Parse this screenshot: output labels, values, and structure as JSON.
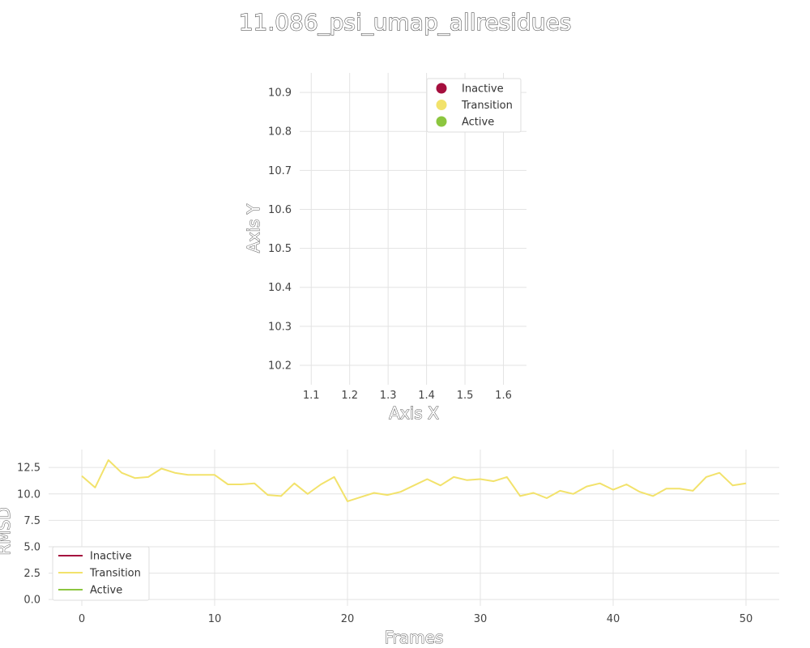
{
  "title": "11.086_psi_umap_allresidues",
  "colors": {
    "inactive": "#a50f3e",
    "transition": "#f2e26b",
    "active": "#8cc63f"
  },
  "chart_data": [
    {
      "type": "scatter",
      "title": "",
      "xlabel": "Axis X",
      "ylabel": "Axis Y",
      "xlim": [
        1.07,
        1.66
      ],
      "ylim": [
        10.15,
        10.95
      ],
      "x_ticks": [
        "1.1",
        "1.2",
        "1.3",
        "1.4",
        "1.5",
        "1.6"
      ],
      "x_tick_values": [
        1.1,
        1.2,
        1.3,
        1.4,
        1.5,
        1.6
      ],
      "y_ticks": [
        "10.2",
        "10.3",
        "10.4",
        "10.5",
        "10.6",
        "10.7",
        "10.8",
        "10.9"
      ],
      "y_tick_values": [
        10.2,
        10.3,
        10.4,
        10.5,
        10.6,
        10.7,
        10.8,
        10.9
      ],
      "legend_position": "top-right",
      "grid": true,
      "series": [
        {
          "name": "Inactive",
          "color": "#a50f3e",
          "points": []
        },
        {
          "name": "Transition",
          "color": "#f2e26b",
          "points": []
        },
        {
          "name": "Active",
          "color": "#8cc63f",
          "points": []
        }
      ]
    },
    {
      "type": "line",
      "title": "",
      "xlabel": "Frames",
      "ylabel": "RMSD",
      "xlim": [
        -2.5,
        52.5
      ],
      "ylim": [
        -0.6,
        14.2
      ],
      "x_ticks": [
        "0",
        "10",
        "20",
        "30",
        "40",
        "50"
      ],
      "x_tick_values": [
        0,
        10,
        20,
        30,
        40,
        50
      ],
      "y_ticks": [
        "0.0",
        "2.5",
        "5.0",
        "7.5",
        "10.0",
        "12.5"
      ],
      "y_tick_values": [
        0,
        2.5,
        5,
        7.5,
        10,
        12.5
      ],
      "legend_position": "bottom-left",
      "grid": true,
      "series": [
        {
          "name": "Inactive",
          "color": "#a50f3e",
          "x": [],
          "y": []
        },
        {
          "name": "Transition",
          "color": "#f2e26b",
          "x": [
            0,
            1,
            2,
            3,
            4,
            5,
            6,
            7,
            8,
            9,
            10,
            11,
            12,
            13,
            14,
            15,
            16,
            17,
            18,
            19,
            20,
            21,
            22,
            23,
            24,
            25,
            26,
            27,
            28,
            29,
            30,
            31,
            32,
            33,
            34,
            35,
            36,
            37,
            38,
            39,
            40,
            41,
            42,
            43,
            44,
            45,
            46,
            47,
            48,
            49,
            50
          ],
          "y": [
            11.7,
            10.6,
            13.2,
            12.0,
            11.5,
            11.6,
            12.4,
            12.0,
            11.8,
            11.8,
            11.8,
            10.9,
            10.9,
            11.0,
            9.9,
            9.8,
            11.0,
            10.0,
            10.9,
            11.6,
            9.3,
            9.7,
            10.1,
            9.9,
            10.2,
            10.8,
            11.4,
            10.8,
            11.6,
            11.3,
            11.4,
            11.2,
            11.6,
            9.8,
            10.1,
            9.6,
            10.3,
            10.0,
            10.7,
            11.0,
            10.4,
            10.9,
            10.2,
            9.8,
            10.5,
            10.5,
            10.3,
            11.6,
            12.0,
            10.8,
            11.0
          ]
        },
        {
          "name": "Active",
          "color": "#8cc63f",
          "x": [],
          "y": []
        }
      ]
    }
  ]
}
